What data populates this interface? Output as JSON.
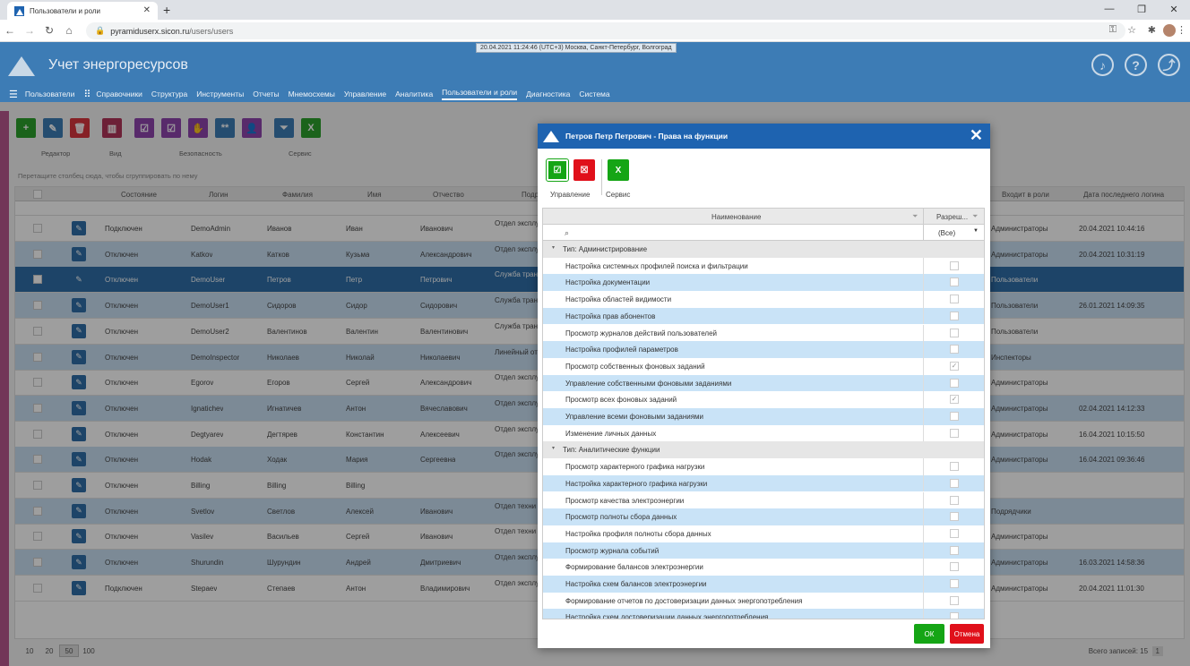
{
  "browser": {
    "tab_title": "Пользователи и роли",
    "url_host": "pyramiduserx.sicon.ru",
    "url_path": "/users/users"
  },
  "app": {
    "datetime": "20.04.2021 11:24:46 (UTC+3) Москва, Санкт-Петербург, Волгоград",
    "title": "Учет энергоресурсов",
    "menu": [
      "Пользователи",
      "Справочники",
      "Структура",
      "Инструменты",
      "Отчеты",
      "Мнемосхемы",
      "Управление",
      "Аналитика",
      "Пользователи и роли",
      "Диагностика",
      "Система"
    ],
    "active_menu": "Пользователи и роли"
  },
  "toolbar": {
    "groups": [
      "Редактор",
      "Вид",
      "Безопасность",
      "Сервис"
    ],
    "groupby_hint": "Перетащите столбец сюда, чтобы сгруппировать по нему"
  },
  "grid": {
    "columns": [
      "Состояние",
      "Логин",
      "Фамилия",
      "Имя",
      "Отчество",
      "Подр",
      "Входит в роли",
      "Дата последнего логина"
    ],
    "rows": [
      {
        "state": "Подключен",
        "login": "DemoAdmin",
        "last": "Иванов",
        "first": "Иван",
        "middle": "Иванович",
        "dept": "Отдел эксплу электроэнер",
        "roles": "Администраторы",
        "date": "20.04.2021 10:44:16"
      },
      {
        "state": "Отключен",
        "login": "Katkov",
        "last": "Катков",
        "first": "Кузьма",
        "middle": "Александрович",
        "dept": "Отдел эксплу электроэнер",
        "roles": "Администраторы",
        "date": "20.04.2021 10:31:19"
      },
      {
        "state": "Отключен",
        "login": "DemoUser",
        "last": "Петров",
        "first": "Петр",
        "middle": "Петрович",
        "dept": "Служба тран электроэнер",
        "roles": "Пользователи",
        "date": ""
      },
      {
        "state": "Отключен",
        "login": "DemoUser1",
        "last": "Сидоров",
        "first": "Сидор",
        "middle": "Сидорович",
        "dept": "Служба тран электроэнер",
        "roles": "Пользователи",
        "date": "26.01.2021 14:09:35"
      },
      {
        "state": "Отключен",
        "login": "DemoUser2",
        "last": "Валентинов",
        "first": "Валентин",
        "middle": "Валентинович",
        "dept": "Служба тран электроэнер",
        "roles": "Пользователи",
        "date": ""
      },
      {
        "state": "Отключен",
        "login": "DemoInspector",
        "last": "Николаев",
        "first": "Николай",
        "middle": "Николаевич",
        "dept": "Линейный от",
        "roles": "Инспекторы",
        "date": ""
      },
      {
        "state": "Отключен",
        "login": "Egorov",
        "last": "Егоров",
        "first": "Сергей",
        "middle": "Александрович",
        "dept": "Отдел эксплу электроэнер",
        "roles": "Администраторы",
        "date": ""
      },
      {
        "state": "Отключен",
        "login": "Ignatichev",
        "last": "Игнатичев",
        "first": "Антон",
        "middle": "Вячеславович",
        "dept": "Отдел эксплу электроэнер",
        "roles": "Администраторы",
        "date": "02.04.2021 14:12:33"
      },
      {
        "state": "Отключен",
        "login": "Degtyarev",
        "last": "Дегтярев",
        "first": "Константин",
        "middle": "Алексеевич",
        "dept": "Отдел эксплу электроэнер",
        "roles": "Администраторы",
        "date": "16.04.2021 10:15:50"
      },
      {
        "state": "Отключен",
        "login": "Hodak",
        "last": "Ходак",
        "first": "Мария",
        "middle": "Сергеевна",
        "dept": "Отдел эксплу электроэнер",
        "roles": "Администраторы",
        "date": "16.04.2021 09:36:46"
      },
      {
        "state": "Отключен",
        "login": "Billing",
        "last": "Billing",
        "first": "Billing",
        "middle": "",
        "dept": "",
        "roles": "",
        "date": ""
      },
      {
        "state": "Отключен",
        "login": "Svetlov",
        "last": "Светлов",
        "first": "Алексей",
        "middle": "Иванович",
        "dept": "Отдел техни",
        "roles": "Подрядчики",
        "date": ""
      },
      {
        "state": "Отключен",
        "login": "Vasilev",
        "last": "Васильев",
        "first": "Сергей",
        "middle": "Иванович",
        "dept": "Отдел техни",
        "roles": "Администраторы",
        "date": ""
      },
      {
        "state": "Отключен",
        "login": "Shurundin",
        "last": "Шурундин",
        "first": "Андрей",
        "middle": "Дмитриевич",
        "dept": "Отдел эксплу электроэнер",
        "roles": "Администраторы",
        "date": "16.03.2021 14:58:36"
      },
      {
        "state": "Подключен",
        "login": "Stepaev",
        "last": "Степаев",
        "first": "Антон",
        "middle": "Владимирович",
        "dept": "Отдел эксплу электроэнер",
        "roles": "Администраторы",
        "date": "20.04.2021 11:01:30"
      }
    ],
    "page_sizes": [
      "10",
      "20",
      "50",
      "100"
    ],
    "current_page_size": "50",
    "total": "Всего записей: 15",
    "page": "1"
  },
  "dialog": {
    "title": "Петров Петр Петрович - Права на функции",
    "tool_labels": {
      "manage": "Управление",
      "service": "Сервис"
    },
    "col_name": "Наименование",
    "col_allow": "Разреш...",
    "filter_all": "(Все)",
    "rows": [
      {
        "type": "group",
        "name": "Тип: Администрирование"
      },
      {
        "name": "Настройка системных профилей поиска и фильтрации",
        "checked": false
      },
      {
        "name": "Настройка документации",
        "checked": false
      },
      {
        "name": "Настройка областей видимости",
        "checked": false
      },
      {
        "name": "Настройка прав абонентов",
        "checked": false
      },
      {
        "name": "Просмотр журналов действий пользователей",
        "checked": false
      },
      {
        "name": "Настройка профилей параметров",
        "checked": false
      },
      {
        "name": "Просмотр собственных фоновых заданий",
        "checked": true
      },
      {
        "name": "Управление собственными фоновыми заданиями",
        "checked": false
      },
      {
        "name": "Просмотр всех фоновых заданий",
        "checked": true
      },
      {
        "name": "Управление всеми фоновыми заданиями",
        "checked": false
      },
      {
        "name": "Изменение личных данных",
        "checked": false
      },
      {
        "type": "group",
        "name": "Тип: Аналитические функции"
      },
      {
        "name": "Просмотр характерного графика нагрузки",
        "checked": false
      },
      {
        "name": "Настройка характерного графика нагрузки",
        "checked": false
      },
      {
        "name": "Просмотр качества электроэнергии",
        "checked": false
      },
      {
        "name": "Просмотр полноты сбора данных",
        "checked": false
      },
      {
        "name": "Настройка профиля полноты сбора данных",
        "checked": false
      },
      {
        "name": "Просмотр журнала событий",
        "checked": false
      },
      {
        "name": "Формирование балансов электроэнергии",
        "checked": false
      },
      {
        "name": "Настройка схем балансов электроэнергии",
        "checked": false
      },
      {
        "name": "Формирование отчетов по достоверизации данных энергопотребления",
        "checked": false
      },
      {
        "name": "Настройка схем достоверизации данных энергопотребления",
        "checked": false
      }
    ],
    "ok": "ОК",
    "cancel": "Отмена"
  },
  "colors": {
    "header": "#3d7cb5",
    "dialog_title": "#1e63b0",
    "ok": "#15a515",
    "cancel": "#e0101a",
    "row_alt": "#c9e3f7"
  }
}
